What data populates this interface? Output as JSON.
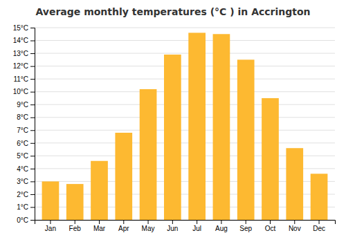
{
  "chart_data": {
    "type": "bar",
    "title": "Average monthly temperatures (°C ) in Accrington",
    "categories": [
      "Jan",
      "Feb",
      "Mar",
      "Apr",
      "May",
      "Jun",
      "Jul",
      "Aug",
      "Sep",
      "Oct",
      "Nov",
      "Dec"
    ],
    "values": [
      3.0,
      2.8,
      4.6,
      6.8,
      10.2,
      12.9,
      14.6,
      14.5,
      12.5,
      9.5,
      5.6,
      3.6
    ],
    "color": "#FDB931",
    "ylim": [
      0,
      15
    ],
    "yticks": [
      {
        "value": 0,
        "label": "0°C"
      },
      {
        "value": 1,
        "label": "1°C"
      },
      {
        "value": 2,
        "label": "2°C"
      },
      {
        "value": 3,
        "label": "3°C"
      },
      {
        "value": 4,
        "label": "4°C"
      },
      {
        "value": 5,
        "label": "5°C"
      },
      {
        "value": 6,
        "label": "6°C"
      },
      {
        "value": 7,
        "label": "7°C"
      },
      {
        "value": 8,
        "label": "8°C"
      },
      {
        "value": 9,
        "label": "9°C"
      },
      {
        "value": 10,
        "label": "10°C"
      },
      {
        "value": 11,
        "label": "11°C"
      },
      {
        "value": 12,
        "label": "12°C"
      },
      {
        "value": 13,
        "label": "13°C"
      },
      {
        "value": 14,
        "label": "14°C"
      },
      {
        "value": 15,
        "label": "15°C"
      }
    ],
    "grid": true
  }
}
